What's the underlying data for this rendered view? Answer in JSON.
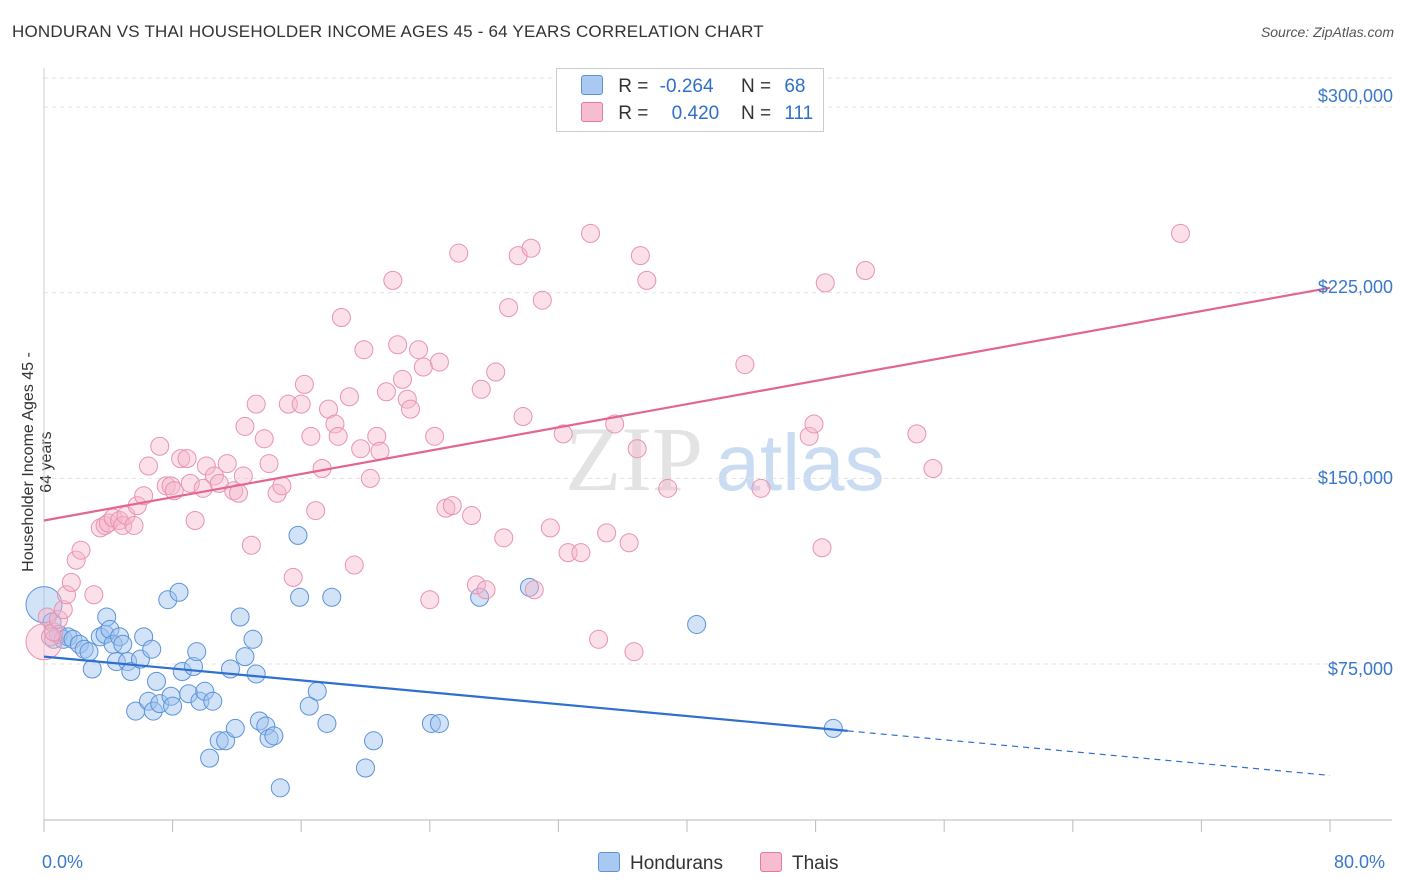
{
  "title": "HONDURAN VS THAI HOUSEHOLDER INCOME AGES 45 - 64 YEARS CORRELATION CHART",
  "source": "Source: ZipAtlas.com",
  "watermark": {
    "zip": "ZIP",
    "atlas": "atlas"
  },
  "legend": {
    "r_label": "R =",
    "n_label": "N =",
    "rows": [
      {
        "r": "-0.264",
        "n": "68",
        "color": "#a9c8f2",
        "border": "#5b93d9"
      },
      {
        "r": "0.420",
        "n": "111",
        "color": "#f7bcd0",
        "border": "#e07a9e"
      }
    ]
  },
  "bottom_legend": [
    "Hondurans",
    "Thais"
  ],
  "colors": {
    "honduran_fill": "rgba(157,192,238,0.45)",
    "honduran_stroke": "#5b93d9",
    "honduran_line": "#2f6fd0",
    "thai_fill": "rgba(246,180,202,0.42)",
    "thai_stroke": "#e893b0",
    "thai_line": "#e2668f",
    "axis_text": "#3a78c9"
  },
  "chart_data": {
    "type": "scatter",
    "title": "HONDURAN VS THAI HOUSEHOLDER INCOME AGES 45 - 64 YEARS CORRELATION CHART",
    "xlabel": "",
    "ylabel": "Householder Income Ages 45 - 64 years",
    "xlim": [
      0,
      80
    ],
    "ylim": [
      12000,
      315000
    ],
    "x_tick_labels": [
      "0.0%",
      "80.0%"
    ],
    "y_ticks": [
      75000,
      150000,
      225000,
      300000
    ],
    "y_tick_labels": [
      "$75,000",
      "$150,000",
      "$225,000",
      "$300,000"
    ],
    "grid": "horizontal dashed",
    "series": [
      {
        "name": "Hondurans",
        "trend": {
          "x": [
            0,
            50
          ],
          "y": [
            78000,
            48000
          ],
          "dashed_to": [
            80,
            30000
          ]
        },
        "points": [
          [
            0,
            99000
          ],
          [
            0.5,
            92000
          ],
          [
            0.6,
            85000
          ],
          [
            0.9,
            87000
          ],
          [
            1.2,
            85000
          ],
          [
            1.5,
            86000
          ],
          [
            1.8,
            85000
          ],
          [
            2.2,
            83000
          ],
          [
            2.5,
            81000
          ],
          [
            2.8,
            80000
          ],
          [
            3,
            73000
          ],
          [
            3.5,
            86000
          ],
          [
            3.8,
            87000
          ],
          [
            3.9,
            94000
          ],
          [
            4.1,
            89000
          ],
          [
            4.3,
            83000
          ],
          [
            4.5,
            76000
          ],
          [
            4.7,
            86000
          ],
          [
            4.9,
            83000
          ],
          [
            5.2,
            76000
          ],
          [
            5.4,
            72000
          ],
          [
            5.7,
            56000
          ],
          [
            6,
            77000
          ],
          [
            6.2,
            86000
          ],
          [
            6.5,
            60000
          ],
          [
            6.7,
            81000
          ],
          [
            6.8,
            56000
          ],
          [
            7,
            68000
          ],
          [
            7.2,
            59000
          ],
          [
            7.7,
            101000
          ],
          [
            7.9,
            62000
          ],
          [
            8,
            58000
          ],
          [
            8.4,
            104000
          ],
          [
            8.6,
            72000
          ],
          [
            9,
            63000
          ],
          [
            9.3,
            74000
          ],
          [
            9.5,
            80000
          ],
          [
            9.7,
            60000
          ],
          [
            10,
            64000
          ],
          [
            10.3,
            37000
          ],
          [
            10.5,
            60000
          ],
          [
            10.9,
            44000
          ],
          [
            11.3,
            44000
          ],
          [
            11.6,
            73000
          ],
          [
            11.9,
            49000
          ],
          [
            12.2,
            94000
          ],
          [
            12.5,
            78000
          ],
          [
            13,
            85000
          ],
          [
            13.2,
            71000
          ],
          [
            13.4,
            52000
          ],
          [
            13.8,
            50000
          ],
          [
            14,
            45000
          ],
          [
            14.3,
            46000
          ],
          [
            14.7,
            25000
          ],
          [
            15.8,
            127000
          ],
          [
            15.9,
            102000
          ],
          [
            16.5,
            58000
          ],
          [
            17,
            64000
          ],
          [
            17.6,
            51000
          ],
          [
            17.9,
            102000
          ],
          [
            20,
            33000
          ],
          [
            20.5,
            44000
          ],
          [
            24.1,
            51000
          ],
          [
            24.6,
            51000
          ],
          [
            27.1,
            102000
          ],
          [
            30.2,
            106000
          ],
          [
            40.6,
            91000
          ],
          [
            49.1,
            49000
          ]
        ]
      },
      {
        "name": "Thais",
        "trend": {
          "x": [
            0,
            80
          ],
          "y": [
            133000,
            227000
          ]
        },
        "points": [
          [
            0,
            84000
          ],
          [
            0.2,
            94000
          ],
          [
            0.4,
            86000
          ],
          [
            0.6,
            88000
          ],
          [
            0.9,
            93000
          ],
          [
            1.2,
            97000
          ],
          [
            1.4,
            103000
          ],
          [
            1.7,
            108000
          ],
          [
            2,
            117000
          ],
          [
            2.3,
            121000
          ],
          [
            3.1,
            103000
          ],
          [
            3.5,
            130000
          ],
          [
            3.8,
            131000
          ],
          [
            4,
            132000
          ],
          [
            4.3,
            134000
          ],
          [
            4.7,
            133000
          ],
          [
            4.9,
            131000
          ],
          [
            5.1,
            135000
          ],
          [
            5.6,
            131000
          ],
          [
            5.8,
            139000
          ],
          [
            6.2,
            143000
          ],
          [
            6.5,
            155000
          ],
          [
            7.2,
            163000
          ],
          [
            7.6,
            147000
          ],
          [
            7.9,
            147000
          ],
          [
            8.1,
            145000
          ],
          [
            8.5,
            158000
          ],
          [
            8.9,
            158000
          ],
          [
            9.1,
            148000
          ],
          [
            9.4,
            133000
          ],
          [
            9.9,
            146000
          ],
          [
            10.1,
            155000
          ],
          [
            10.6,
            151000
          ],
          [
            10.9,
            148000
          ],
          [
            11.4,
            156000
          ],
          [
            11.8,
            145000
          ],
          [
            12.1,
            144000
          ],
          [
            12.4,
            151000
          ],
          [
            12.5,
            171000
          ],
          [
            12.9,
            123000
          ],
          [
            13.2,
            180000
          ],
          [
            13.7,
            166000
          ],
          [
            14,
            156000
          ],
          [
            14.5,
            144000
          ],
          [
            14.8,
            147000
          ],
          [
            15.2,
            180000
          ],
          [
            15.5,
            110000
          ],
          [
            16,
            180000
          ],
          [
            16.2,
            188000
          ],
          [
            16.6,
            167000
          ],
          [
            16.9,
            137000
          ],
          [
            17.3,
            154000
          ],
          [
            17.7,
            178000
          ],
          [
            18.1,
            172000
          ],
          [
            18.3,
            167000
          ],
          [
            18.5,
            215000
          ],
          [
            19,
            183000
          ],
          [
            19.3,
            115000
          ],
          [
            19.7,
            162000
          ],
          [
            19.9,
            202000
          ],
          [
            20.3,
            150000
          ],
          [
            20.7,
            167000
          ],
          [
            20.9,
            161000
          ],
          [
            21.3,
            185000
          ],
          [
            21.7,
            230000
          ],
          [
            22,
            204000
          ],
          [
            22.3,
            190000
          ],
          [
            22.6,
            182000
          ],
          [
            22.8,
            178000
          ],
          [
            23.3,
            202000
          ],
          [
            23.6,
            195000
          ],
          [
            24,
            101000
          ],
          [
            24.3,
            167000
          ],
          [
            24.6,
            197000
          ],
          [
            25,
            138000
          ],
          [
            25.4,
            139000
          ],
          [
            25.8,
            241000
          ],
          [
            26.6,
            135000
          ],
          [
            26.9,
            107000
          ],
          [
            27.2,
            186000
          ],
          [
            27.5,
            105000
          ],
          [
            28.1,
            193000
          ],
          [
            28.6,
            126000
          ],
          [
            28.9,
            219000
          ],
          [
            29.5,
            240000
          ],
          [
            29.8,
            175000
          ],
          [
            30.3,
            243000
          ],
          [
            30.5,
            105000
          ],
          [
            31,
            222000
          ],
          [
            31.5,
            130000
          ],
          [
            32.3,
            168000
          ],
          [
            32.6,
            120000
          ],
          [
            33.4,
            120000
          ],
          [
            34,
            249000
          ],
          [
            34.5,
            85000
          ],
          [
            35,
            128000
          ],
          [
            35.5,
            172000
          ],
          [
            36.4,
            124000
          ],
          [
            36.7,
            80000
          ],
          [
            36.9,
            162000
          ],
          [
            37.1,
            240000
          ],
          [
            37.5,
            230000
          ],
          [
            38.8,
            146000
          ],
          [
            43.6,
            196000
          ],
          [
            44.6,
            146000
          ],
          [
            47.6,
            167000
          ],
          [
            47.9,
            172000
          ],
          [
            48.4,
            122000
          ],
          [
            48.6,
            229000
          ],
          [
            51.1,
            234000
          ],
          [
            54.3,
            168000
          ],
          [
            55.3,
            154000
          ],
          [
            70.7,
            249000
          ]
        ]
      }
    ]
  }
}
